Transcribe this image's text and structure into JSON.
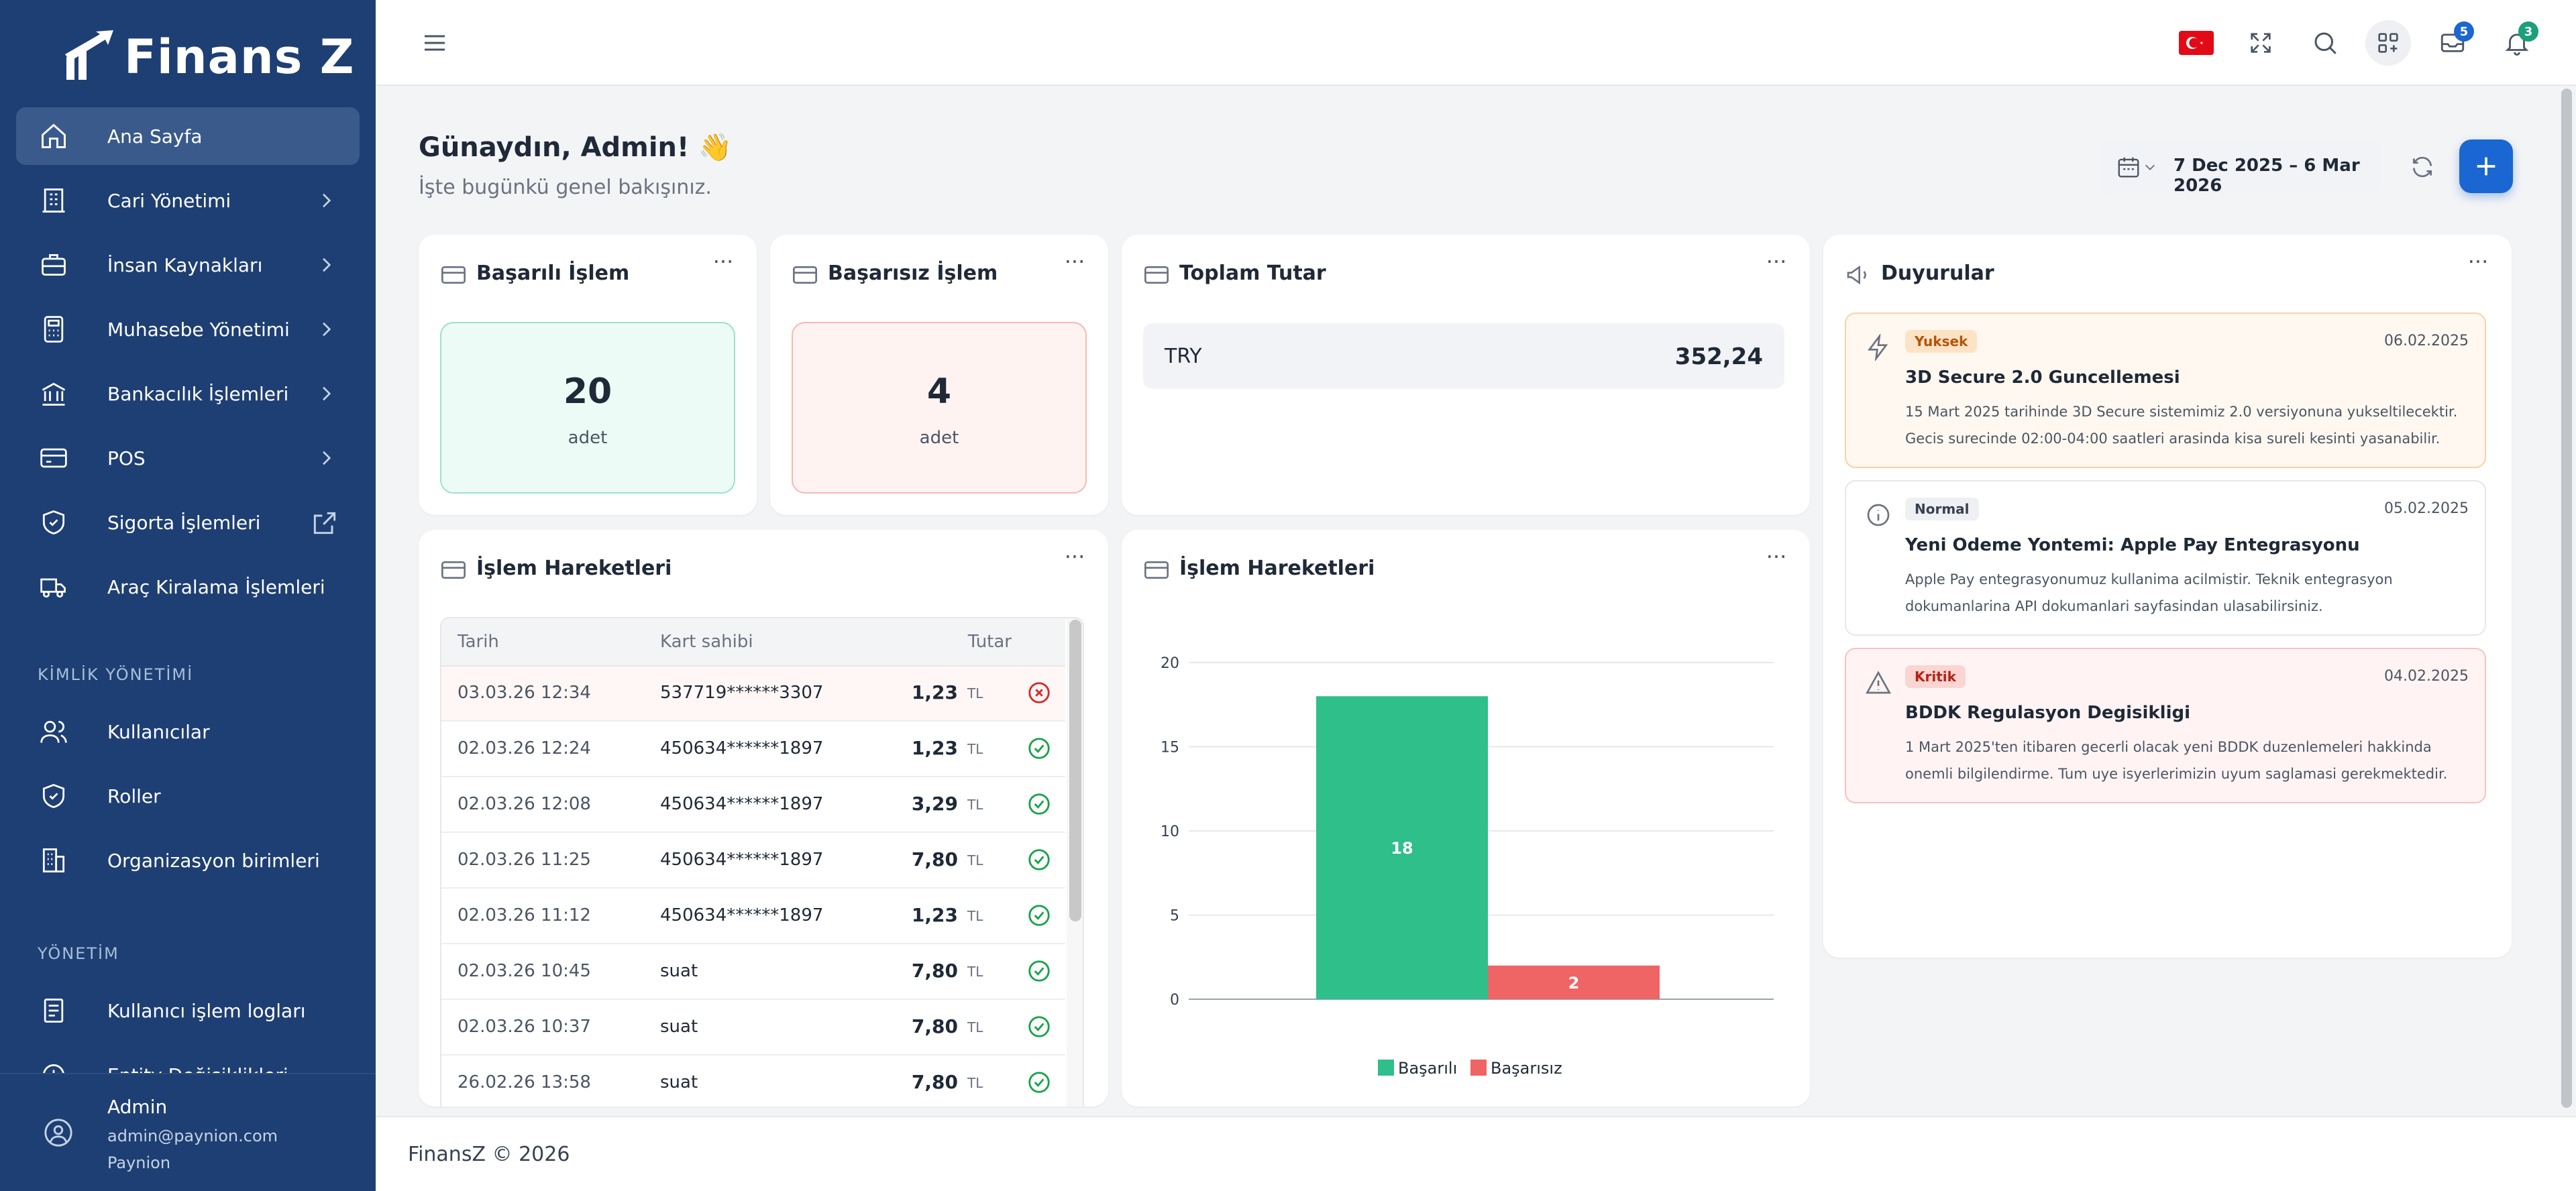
{
  "app": {
    "logo": "Finans Z"
  },
  "sidebar": {
    "items": [
      {
        "label": "Ana Sayfa",
        "icon": "home-icon",
        "active": true
      },
      {
        "label": "Cari Yönetimi",
        "icon": "building-icon",
        "chevron": true
      },
      {
        "label": "İnsan Kaynakları",
        "icon": "briefcase-icon",
        "chevron": true
      },
      {
        "label": "Muhasebe Yönetimi",
        "icon": "calculator-icon",
        "chevron": true
      },
      {
        "label": "Bankacılık İşlemleri",
        "icon": "bank-icon",
        "chevron": true
      },
      {
        "label": "POS",
        "icon": "credit-card-icon",
        "chevron": true
      },
      {
        "label": "Sigorta İşlemleri",
        "icon": "shield-icon",
        "external": true
      },
      {
        "label": "Araç Kiralama İşlemleri",
        "icon": "truck-icon"
      }
    ],
    "section_identity": "KİMLİK YÖNETİMİ",
    "identity_items": [
      {
        "label": "Kullanıcılar",
        "icon": "users-icon"
      },
      {
        "label": "Roller",
        "icon": "shield-check-icon"
      },
      {
        "label": "Organizasyon birimleri",
        "icon": "org-building-icon"
      }
    ],
    "section_admin": "YÖNETİM",
    "admin_items": [
      {
        "label": "Kullanıcı işlem logları",
        "icon": "log-icon"
      },
      {
        "label": "Entity Değişiklikleri",
        "icon": "history-icon"
      }
    ],
    "user": {
      "name": "Admin",
      "email": "admin@paynion.com",
      "org": "Paynion"
    }
  },
  "topbar": {
    "messages_badge": "5",
    "notifications_badge": "3"
  },
  "greeting": {
    "title": "Günaydın, Admin! 👋",
    "subtitle": "İşte bugünkü genel bakışınız."
  },
  "date_range": "7 Dec 2025 – 6 Mar 2026",
  "cards": {
    "success": {
      "title": "Başarılı İşlem",
      "value": "20",
      "unit": "adet"
    },
    "fail": {
      "title": "Başarısız İşlem",
      "value": "4",
      "unit": "adet"
    },
    "total": {
      "title": "Toplam Tutar",
      "currency": "TRY",
      "value": "352,24"
    },
    "announcements": {
      "title": "Duyurular",
      "items": [
        {
          "tag": "Yuksek",
          "date": "06.02.2025",
          "title": "3D Secure 2.0 Guncellemesi",
          "body": "15 Mart 2025 tarihinde 3D Secure sistemimiz 2.0 versiyonuna yukseltilecektir. Gecis surecinde 02:00-04:00 saatleri arasinda kisa sureli kesinti yasanabilir."
        },
        {
          "tag": "Normal",
          "date": "05.02.2025",
          "title": "Yeni Odeme Yontemi: Apple Pay Entegrasyonu",
          "body": "Apple Pay entegrasyonumuz kullanima acilmistir. Teknik entegrasyon dokumanlarina API dokumanlari sayfasindan ulasabilirsiniz."
        },
        {
          "tag": "Kritik",
          "date": "04.02.2025",
          "title": "BDDK Regulasyon Degisikligi",
          "body": "1 Mart 2025'ten itibaren gecerli olacak yeni BDDK duzenlemeleri hakkinda onemli bilgilendirme. Tum uye isyerlerimizin uyum saglamasi gerekmektedir."
        }
      ]
    },
    "movements_table": {
      "title": "İşlem Hareketleri",
      "columns": [
        "Tarih",
        "Kart sahibi",
        "Tutar"
      ],
      "rows": [
        {
          "date": "03.03.26 12:34",
          "holder": "537719******3307",
          "amount": "1,23",
          "cur": "TL",
          "status": "fail"
        },
        {
          "date": "02.03.26 12:24",
          "holder": "450634******1897",
          "amount": "1,23",
          "cur": "TL",
          "status": "ok"
        },
        {
          "date": "02.03.26 12:08",
          "holder": "450634******1897",
          "amount": "3,29",
          "cur": "TL",
          "status": "ok"
        },
        {
          "date": "02.03.26 11:25",
          "holder": "450634******1897",
          "amount": "7,80",
          "cur": "TL",
          "status": "ok"
        },
        {
          "date": "02.03.26 11:12",
          "holder": "450634******1897",
          "amount": "1,23",
          "cur": "TL",
          "status": "ok"
        },
        {
          "date": "02.03.26 10:45",
          "holder": "suat",
          "amount": "7,80",
          "cur": "TL",
          "status": "ok"
        },
        {
          "date": "02.03.26 10:37",
          "holder": "suat",
          "amount": "7,80",
          "cur": "TL",
          "status": "ok"
        },
        {
          "date": "26.02.26 13:58",
          "holder": "suat",
          "amount": "7,80",
          "cur": "TL",
          "status": "ok"
        }
      ]
    },
    "movements_chart": {
      "title": "İşlem Hareketleri"
    }
  },
  "chart_data": {
    "type": "bar",
    "categories": [
      "Başarılı",
      "Başarısız"
    ],
    "values": [
      18,
      2
    ],
    "colors": [
      "#2fbf8a",
      "#ef6464"
    ],
    "legend": [
      "Başarılı",
      "Başarısız"
    ],
    "legend_position": "bottom",
    "yticks": [
      "0",
      "5",
      "10",
      "15",
      "20"
    ],
    "ylim": [
      0,
      20
    ],
    "grid": true
  },
  "footer": {
    "text": "FinansZ © 2026"
  },
  "colors": {
    "sidebar": "#1e3f73",
    "accent": "#1a66d2",
    "success": "#2fbf8a",
    "danger": "#ef6464"
  }
}
